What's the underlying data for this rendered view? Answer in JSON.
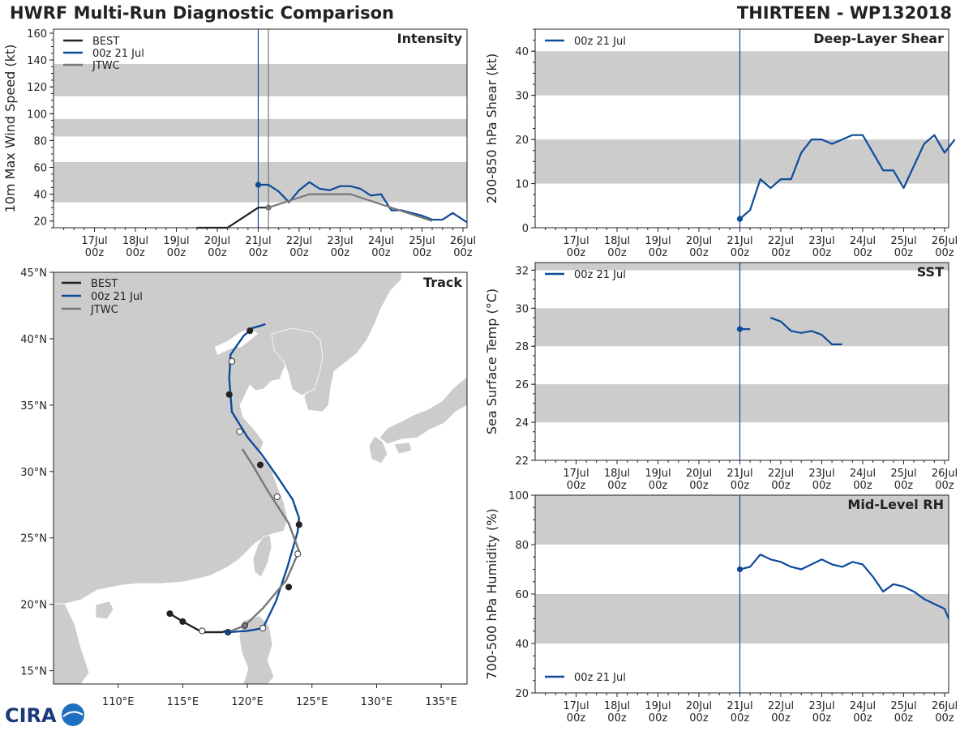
{
  "header": {
    "title": "HWRF Multi-Run Diagnostic Comparison",
    "storm": "THIRTEEN - WP132018"
  },
  "logo": {
    "text": "CIRA"
  },
  "time_axis": {
    "labels": [
      [
        "17Jul",
        "00z"
      ],
      [
        "18Jul",
        "00z"
      ],
      [
        "19Jul",
        "00z"
      ],
      [
        "20Jul",
        "00z"
      ],
      [
        "21Jul",
        "00z"
      ],
      [
        "22Jul",
        "00z"
      ],
      [
        "23Jul",
        "00z"
      ],
      [
        "24Jul",
        "00z"
      ],
      [
        "25Jul",
        "00z"
      ],
      [
        "26Jul",
        "00z"
      ]
    ],
    "ticks_days": [
      1,
      2,
      3,
      4,
      5,
      6,
      7,
      8,
      9,
      10
    ],
    "range_days": [
      0,
      10.1
    ],
    "init_day": 5
  },
  "chart_data": [
    {
      "id": "intensity",
      "type": "line",
      "title": "Intensity",
      "ylabel": "10m Max Wind Speed (kt)",
      "ylim": [
        15,
        163
      ],
      "yticks": [
        20,
        40,
        60,
        80,
        100,
        120,
        140,
        160
      ],
      "bands": [
        [
          34,
          64
        ],
        [
          83,
          96
        ],
        [
          113,
          137
        ]
      ],
      "vlines": [
        {
          "x": 5.0,
          "color": "#0d4b9a"
        },
        {
          "x": 5.25,
          "color": "#777777"
        }
      ],
      "legend": [
        "BEST",
        "00z 21 Jul",
        "JTWC"
      ],
      "series": [
        {
          "name": "BEST",
          "color": "#222222",
          "x": [
            3.5,
            3.75,
            4,
            4.25,
            4.5,
            4.75,
            5,
            5.25
          ],
          "y": [
            15,
            15,
            15,
            15,
            20,
            25,
            30,
            30
          ]
        },
        {
          "name": "00z 21 Jul",
          "color": "#0d4b9a",
          "marker": 0,
          "x": [
            5,
            5.25,
            5.5,
            5.75,
            6,
            6.25,
            6.5,
            6.75,
            7,
            7.25,
            7.5,
            7.75,
            8,
            8.25,
            8.5,
            8.75,
            9,
            9.25,
            9.5,
            9.75,
            10,
            10.1
          ],
          "y": [
            47,
            47,
            42,
            34,
            43,
            49,
            44,
            43,
            46,
            46,
            44,
            39,
            40,
            28,
            28,
            26,
            24,
            21,
            21,
            26,
            21,
            19
          ]
        },
        {
          "name": "JTWC",
          "color": "#777777",
          "marker": 0,
          "x": [
            5.25,
            5.75,
            6.25,
            7.25,
            7.75,
            8.25,
            9.25
          ],
          "y": [
            30,
            35,
            40,
            40,
            35,
            30,
            20
          ]
        }
      ]
    },
    {
      "id": "shear",
      "type": "line",
      "title": "Deep-Layer Shear",
      "ylabel": "200-850 hPa Shear (kt)",
      "ylim": [
        0,
        45
      ],
      "yticks": [
        0,
        10,
        20,
        30,
        40
      ],
      "bands": [
        [
          10,
          20
        ],
        [
          30,
          40
        ]
      ],
      "vlines": [
        {
          "x": 5.0,
          "color": "#0d4b9a"
        }
      ],
      "legend": [
        "00z 21 Jul"
      ],
      "series": [
        {
          "name": "00z 21 Jul",
          "color": "#0d4b9a",
          "marker": 0,
          "x": [
            5,
            5.25,
            5.5,
            5.75,
            6,
            6.25,
            6.5,
            6.75,
            7,
            7.25,
            7.5,
            7.75,
            8,
            8.25,
            8.5,
            8.75,
            9,
            9.25,
            9.5,
            9.75,
            10,
            10.25
          ],
          "y": [
            2,
            4,
            11,
            9,
            11,
            11,
            17,
            20,
            20,
            19,
            20,
            21,
            21,
            17,
            13,
            13,
            9,
            14,
            19,
            21,
            17,
            20
          ]
        }
      ]
    },
    {
      "id": "sst",
      "type": "line",
      "title": "SST",
      "ylabel": "Sea Surface Temp (°C)",
      "ylim": [
        22,
        32.4
      ],
      "yticks": [
        22,
        24,
        26,
        28,
        30,
        32
      ],
      "bands": [
        [
          24,
          26
        ],
        [
          28,
          30
        ],
        [
          32,
          32.4
        ]
      ],
      "vlines": [
        {
          "x": 5.0,
          "color": "#0d4b9a"
        }
      ],
      "legend": [
        "00z 21 Jul"
      ],
      "series": [
        {
          "name": "00z 21 Jul",
          "color": "#0d4b9a",
          "marker": 0,
          "segments": [
            {
              "x": [
                5,
                5.25
              ],
              "y": [
                28.9,
                28.9
              ]
            },
            {
              "x": [
                5.75,
                6,
                6.25,
                6.5,
                6.75,
                7,
                7.25,
                7.5
              ],
              "y": [
                29.5,
                29.3,
                28.8,
                28.7,
                28.8,
                28.6,
                28.1,
                28.1
              ]
            }
          ]
        }
      ]
    },
    {
      "id": "rh",
      "type": "line",
      "title": "Mid-Level RH",
      "ylabel": "700-500 hPa Humidity (%)",
      "ylim": [
        20,
        100
      ],
      "yticks": [
        20,
        40,
        60,
        80,
        100
      ],
      "bands": [
        [
          40,
          60
        ],
        [
          80,
          100
        ]
      ],
      "vlines": [
        {
          "x": 5.0,
          "color": "#0d4b9a"
        }
      ],
      "legend": [
        "00z 21 Jul"
      ],
      "series": [
        {
          "name": "00z 21 Jul",
          "color": "#0d4b9a",
          "marker": 0,
          "x": [
            5,
            5.25,
            5.5,
            5.75,
            6,
            6.25,
            6.5,
            6.75,
            7,
            7.25,
            7.5,
            7.75,
            8,
            8.25,
            8.5,
            8.75,
            9,
            9.25,
            9.5,
            9.75,
            10,
            10.1
          ],
          "y": [
            70,
            71,
            76,
            74,
            73,
            71,
            70,
            72,
            74,
            72,
            71,
            73,
            72,
            67,
            61,
            64,
            63,
            61,
            58,
            56,
            54,
            50
          ]
        }
      ]
    },
    {
      "id": "track",
      "type": "scatter",
      "title": "Track",
      "xlim": [
        105,
        137
      ],
      "ylim": [
        14,
        45
      ],
      "xticks": [
        110,
        115,
        120,
        125,
        130,
        135
      ],
      "xtick_labels": [
        "110°E",
        "115°E",
        "120°E",
        "125°E",
        "130°E",
        "135°E"
      ],
      "yticks": [
        15,
        20,
        25,
        30,
        35,
        40,
        45
      ],
      "ytick_labels": [
        "15°N",
        "20°N",
        "25°N",
        "30°N",
        "35°N",
        "40°N",
        "45°N"
      ],
      "legend": [
        "BEST",
        "00z 21 Jul",
        "JTWC"
      ],
      "series": [
        {
          "name": "BEST",
          "color": "#222222",
          "lon": [
            114.0,
            115.0,
            116.5,
            118.0,
            118.5
          ],
          "lat": [
            19.3,
            18.7,
            17.9,
            17.9,
            18.0
          ],
          "markers": [
            {
              "lon": 114.0,
              "lat": 19.3,
              "fill": "#222222"
            },
            {
              "lon": 115.0,
              "lat": 18.7,
              "fill": "#222222"
            },
            {
              "lon": 116.5,
              "lat": 18.0,
              "fill": "#ffffff"
            }
          ]
        },
        {
          "name": "00z 21 Jul",
          "color": "#0d4b9a",
          "lon": [
            118.5,
            120.0,
            121.2,
            122.2,
            123.1,
            123.9,
            124.0,
            123.5,
            122.4,
            121.1,
            120.0,
            118.8,
            118.6,
            118.7,
            119.7,
            120.4,
            121.1,
            121.4
          ],
          "lat": [
            17.9,
            18.0,
            18.2,
            20.2,
            22.8,
            25.5,
            26.5,
            27.9,
            29.5,
            31.3,
            32.6,
            34.5,
            37.0,
            38.8,
            40.2,
            40.8,
            41.0,
            41.1
          ],
          "markers": [
            {
              "lon": 118.5,
              "lat": 17.9,
              "fill": "#0d4b9a"
            },
            {
              "lon": 121.2,
              "lat": 18.2,
              "fill": "#ffffff"
            },
            {
              "lon": 123.2,
              "lat": 21.3,
              "fill": "#222222"
            },
            {
              "lon": 123.9,
              "lat": 23.8,
              "fill": "#ffffff"
            },
            {
              "lon": 124.0,
              "lat": 26.0,
              "fill": "#222222"
            },
            {
              "lon": 122.3,
              "lat": 28.1,
              "fill": "#ffffff"
            },
            {
              "lon": 121.0,
              "lat": 30.5,
              "fill": "#222222"
            },
            {
              "lon": 119.4,
              "lat": 33.0,
              "fill": "#ffffff"
            },
            {
              "lon": 118.6,
              "lat": 35.8,
              "fill": "#222222"
            },
            {
              "lon": 118.8,
              "lat": 38.3,
              "fill": "#ffffff"
            },
            {
              "lon": 120.2,
              "lat": 40.6,
              "fill": "#222222"
            }
          ]
        },
        {
          "name": "JTWC",
          "color": "#777777",
          "lon": [
            118.5,
            119.8,
            121.2,
            123.0,
            124.0,
            123.2,
            121.6,
            120.4,
            119.6
          ],
          "lat": [
            17.9,
            18.4,
            19.7,
            21.8,
            24.0,
            26.1,
            28.5,
            30.5,
            31.7
          ],
          "markers": [
            {
              "lon": 119.8,
              "lat": 18.4,
              "fill": "#777777"
            }
          ]
        }
      ]
    }
  ]
}
